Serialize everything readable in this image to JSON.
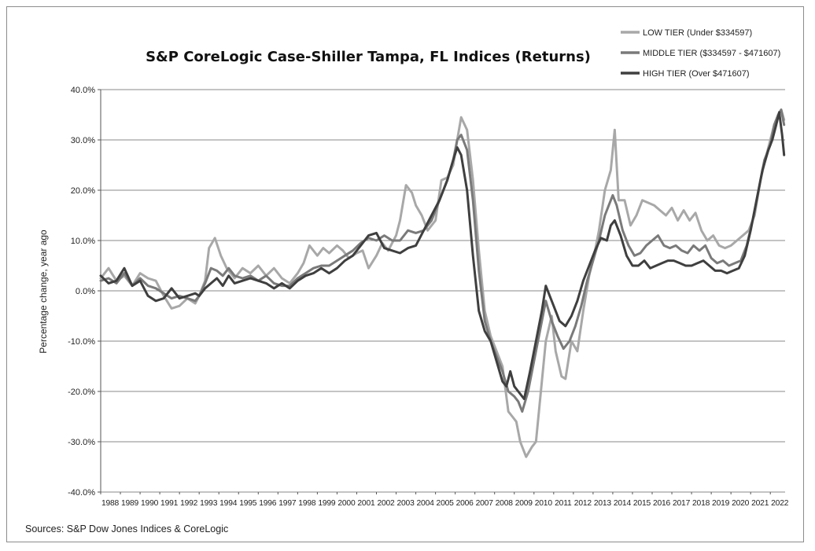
{
  "chart_data": {
    "type": "line",
    "title": "S&P CoreLogic Case-Shiller Tampa, FL Indices (Returns)",
    "ylabel": "Percentage change, year ago",
    "xlabel": "",
    "ylim": [
      -40,
      40
    ],
    "yticks": [
      40,
      30,
      20,
      10,
      0,
      -10,
      -20,
      -30,
      -40
    ],
    "ytick_labels": [
      "40.0%",
      "30.0%",
      "20.0%",
      "10.0%",
      "0.0%",
      "-10.0%",
      "-20.0%",
      "-30.0%",
      "-40.0%"
    ],
    "xlim": [
      1988.0,
      2022.75
    ],
    "xtick_labels": [
      "1988",
      "1989",
      "1990",
      "1991",
      "1992",
      "1993",
      "1994",
      "1995",
      "1996",
      "1997",
      "1998",
      "1999",
      "2000",
      "2001",
      "2002",
      "2003",
      "2004",
      "2005",
      "2006",
      "2007",
      "2008",
      "2009",
      "2010",
      "2011",
      "2012",
      "2013",
      "2014",
      "2015",
      "2016",
      "2017",
      "2018",
      "2019",
      "2020",
      "2021",
      "2022"
    ],
    "grid": "horizontal",
    "legend_position": "top-right",
    "source": "Sources: S&P Dow Jones Indices & CoreLogic",
    "series": [
      {
        "name": "LOW TIER (Under $334597)",
        "color": "#a8a8a8",
        "x": [
          1988.0,
          1988.4,
          1988.8,
          1989.2,
          1989.6,
          1990.0,
          1990.4,
          1990.8,
          1991.2,
          1991.6,
          1992.0,
          1992.4,
          1992.8,
          1993.0,
          1993.3,
          1993.5,
          1993.8,
          1994.1,
          1994.4,
          1994.8,
          1995.2,
          1995.6,
          1996.0,
          1996.4,
          1996.8,
          1997.2,
          1997.6,
          1998.0,
          1998.3,
          1998.6,
          1999.0,
          1999.3,
          1999.6,
          2000.0,
          2000.3,
          2000.6,
          2001.0,
          2001.3,
          2001.6,
          2002.0,
          2002.3,
          2002.6,
          2003.0,
          2003.2,
          2003.5,
          2003.8,
          2004.0,
          2004.3,
          2004.6,
          2005.0,
          2005.3,
          2005.6,
          2005.9,
          2006.1,
          2006.3,
          2006.6,
          2006.9,
          2007.2,
          2007.5,
          2007.8,
          2008.1,
          2008.4,
          2008.7,
          2008.9,
          2009.1,
          2009.3,
          2009.6,
          2009.9,
          2010.1,
          2010.3,
          2010.6,
          2010.9,
          2011.1,
          2011.4,
          2011.6,
          2011.9,
          2012.2,
          2012.5,
          2012.8,
          2013.1,
          2013.3,
          2013.6,
          2013.75,
          2013.9,
          2014.1,
          2014.3,
          2014.6,
          2014.9,
          2015.2,
          2015.5,
          2015.8,
          2016.1,
          2016.4,
          2016.7,
          2017.0,
          2017.3,
          2017.6,
          2017.9,
          2018.2,
          2018.5,
          2018.8,
          2019.1,
          2019.4,
          2019.7,
          2020.0,
          2020.3,
          2020.6,
          2020.9,
          2021.2,
          2021.5,
          2021.8,
          2022.0,
          2022.2,
          2022.4,
          2022.55,
          2022.7
        ],
        "y": [
          2.5,
          4.5,
          2.0,
          3.0,
          1.0,
          3.5,
          2.5,
          2.0,
          -1.0,
          -3.5,
          -3.0,
          -1.5,
          -2.5,
          -1.0,
          2.0,
          8.5,
          10.5,
          7.0,
          4.5,
          2.5,
          4.5,
          3.5,
          5.0,
          3.0,
          4.5,
          2.5,
          1.5,
          3.5,
          5.5,
          9.0,
          7.0,
          8.5,
          7.5,
          9.0,
          8.0,
          6.5,
          7.5,
          8.0,
          4.5,
          7.0,
          9.5,
          8.0,
          11.0,
          14.0,
          21.0,
          19.5,
          17.0,
          15.0,
          12.0,
          14.0,
          22.0,
          22.5,
          25.0,
          30.0,
          34.5,
          32.0,
          22.0,
          8.0,
          -4.0,
          -9.0,
          -12.0,
          -15.0,
          -24.0,
          -25.0,
          -26.0,
          -30.0,
          -33.0,
          -31.0,
          -30.0,
          -22.0,
          -10.0,
          -5.0,
          -12.0,
          -17.0,
          -17.5,
          -10.0,
          -12.0,
          -4.0,
          3.0,
          8.0,
          12.0,
          20.0,
          22.0,
          24.0,
          32.0,
          18.0,
          18.0,
          13.0,
          15.0,
          18.0,
          17.5,
          17.0,
          16.0,
          15.0,
          16.5,
          14.0,
          16.0,
          14.0,
          15.5,
          12.0,
          10.0,
          11.0,
          9.0,
          8.5,
          9.0,
          10.0,
          11.0,
          12.0,
          15.0,
          22.0,
          27.0,
          30.0,
          33.0,
          35.0,
          36.0,
          34.0
        ]
      },
      {
        "name": "MIDDLE TIER ($334597 - $471607)",
        "color": "#7a7a7a",
        "x": [
          1988.0,
          1988.4,
          1988.8,
          1989.2,
          1989.6,
          1990.0,
          1990.4,
          1990.8,
          1991.2,
          1991.6,
          1992.0,
          1992.4,
          1992.8,
          1993.0,
          1993.3,
          1993.6,
          1993.9,
          1994.2,
          1994.5,
          1994.8,
          1995.2,
          1995.6,
          1996.0,
          1996.4,
          1996.8,
          1997.2,
          1997.6,
          1998.0,
          1998.4,
          1998.8,
          1999.2,
          1999.6,
          2000.0,
          2000.4,
          2000.8,
          2001.2,
          2001.6,
          2002.0,
          2002.4,
          2002.8,
          2003.2,
          2003.6,
          2004.0,
          2004.4,
          2004.8,
          2005.2,
          2005.6,
          2005.9,
          2006.1,
          2006.3,
          2006.6,
          2006.9,
          2007.2,
          2007.5,
          2007.8,
          2008.1,
          2008.4,
          2008.7,
          2009.0,
          2009.2,
          2009.4,
          2009.7,
          2010.0,
          2010.3,
          2010.6,
          2010.9,
          2011.2,
          2011.5,
          2011.8,
          2012.1,
          2012.4,
          2012.7,
          2013.0,
          2013.3,
          2013.6,
          2013.8,
          2014.0,
          2014.2,
          2014.5,
          2014.8,
          2015.1,
          2015.4,
          2015.7,
          2016.0,
          2016.3,
          2016.6,
          2016.9,
          2017.2,
          2017.5,
          2017.8,
          2018.1,
          2018.4,
          2018.7,
          2019.0,
          2019.3,
          2019.6,
          2019.9,
          2020.2,
          2020.5,
          2020.8,
          2021.1,
          2021.4,
          2021.7,
          2022.0,
          2022.2,
          2022.4,
          2022.55,
          2022.7
        ],
        "y": [
          2.0,
          2.5,
          1.5,
          3.5,
          1.0,
          2.5,
          1.0,
          0.5,
          -0.5,
          -1.5,
          -1.0,
          -1.5,
          -2.0,
          -1.0,
          1.5,
          4.5,
          4.0,
          3.0,
          4.5,
          3.0,
          2.5,
          3.0,
          2.0,
          3.0,
          1.5,
          1.0,
          1.0,
          2.5,
          3.5,
          4.5,
          5.0,
          5.0,
          6.0,
          7.0,
          8.0,
          9.5,
          10.5,
          10.0,
          11.0,
          10.0,
          10.0,
          12.0,
          11.5,
          12.0,
          14.0,
          18.0,
          22.0,
          26.0,
          30.0,
          31.0,
          28.0,
          18.0,
          4.0,
          -6.0,
          -10.0,
          -13.0,
          -16.0,
          -20.0,
          -21.0,
          -22.0,
          -24.0,
          -20.0,
          -14.0,
          -8.0,
          -2.0,
          -6.0,
          -9.0,
          -11.5,
          -10.0,
          -7.0,
          -3.0,
          2.0,
          6.0,
          10.0,
          15.0,
          17.0,
          19.0,
          17.0,
          12.0,
          9.0,
          7.0,
          7.5,
          9.0,
          10.0,
          11.0,
          9.0,
          8.5,
          9.0,
          8.0,
          7.5,
          9.0,
          8.0,
          9.0,
          6.5,
          5.5,
          6.0,
          5.0,
          5.5,
          6.0,
          9.0,
          14.0,
          20.0,
          26.0,
          29.0,
          33.0,
          35.0,
          36.0,
          33.0
        ]
      },
      {
        "name": "HIGH TIER (Over $471607)",
        "color": "#3f3f3f",
        "x": [
          1988.0,
          1988.4,
          1988.8,
          1989.2,
          1989.6,
          1990.0,
          1990.4,
          1990.8,
          1991.2,
          1991.6,
          1992.0,
          1992.4,
          1992.8,
          1993.0,
          1993.3,
          1993.6,
          1993.9,
          1994.2,
          1994.5,
          1994.8,
          1995.2,
          1995.6,
          1996.0,
          1996.4,
          1996.8,
          1997.2,
          1997.6,
          1998.0,
          1998.4,
          1998.8,
          1999.2,
          1999.6,
          2000.0,
          2000.4,
          2000.8,
          2001.2,
          2001.6,
          2002.0,
          2002.4,
          2002.8,
          2003.2,
          2003.6,
          2004.0,
          2004.4,
          2004.8,
          2005.2,
          2005.6,
          2005.9,
          2006.1,
          2006.3,
          2006.6,
          2006.9,
          2007.2,
          2007.5,
          2007.8,
          2008.1,
          2008.4,
          2008.6,
          2008.8,
          2009.0,
          2009.2,
          2009.5,
          2009.8,
          2010.1,
          2010.4,
          2010.6,
          2010.8,
          2011.0,
          2011.3,
          2011.6,
          2011.9,
          2012.2,
          2012.5,
          2012.8,
          2013.1,
          2013.4,
          2013.7,
          2013.9,
          2014.1,
          2014.4,
          2014.7,
          2015.0,
          2015.3,
          2015.6,
          2015.9,
          2016.2,
          2016.5,
          2016.8,
          2017.1,
          2017.4,
          2017.7,
          2018.0,
          2018.3,
          2018.6,
          2018.9,
          2019.2,
          2019.5,
          2019.8,
          2020.1,
          2020.4,
          2020.7,
          2021.0,
          2021.3,
          2021.6,
          2021.9,
          2022.1,
          2022.3,
          2022.45,
          2022.6,
          2022.7
        ],
        "y": [
          3.0,
          1.5,
          2.0,
          4.5,
          1.0,
          2.0,
          -1.0,
          -2.0,
          -1.5,
          0.5,
          -1.5,
          -1.0,
          -0.5,
          -1.0,
          0.5,
          1.5,
          2.5,
          1.0,
          3.0,
          1.5,
          2.0,
          2.5,
          2.0,
          1.5,
          0.5,
          1.5,
          0.5,
          2.0,
          3.0,
          3.5,
          4.5,
          3.5,
          4.5,
          6.0,
          7.0,
          9.0,
          11.0,
          11.5,
          8.5,
          8.0,
          7.5,
          8.5,
          9.0,
          12.0,
          15.0,
          18.0,
          22.0,
          26.0,
          28.5,
          27.0,
          20.0,
          7.0,
          -4.0,
          -8.0,
          -10.0,
          -14.0,
          -18.0,
          -19.0,
          -16.0,
          -19.0,
          -20.0,
          -21.5,
          -16.0,
          -10.0,
          -4.0,
          1.0,
          -1.0,
          -3.0,
          -6.0,
          -7.0,
          -5.0,
          -2.0,
          2.0,
          5.0,
          8.0,
          10.5,
          10.0,
          13.0,
          14.0,
          11.0,
          7.0,
          5.0,
          5.0,
          6.0,
          4.5,
          5.0,
          5.5,
          6.0,
          6.0,
          5.5,
          5.0,
          5.0,
          5.5,
          6.0,
          5.0,
          4.0,
          4.0,
          3.5,
          4.0,
          4.5,
          7.0,
          12.0,
          18.0,
          24.0,
          28.0,
          30.0,
          33.0,
          35.5,
          31.0,
          27.0
        ]
      }
    ]
  }
}
